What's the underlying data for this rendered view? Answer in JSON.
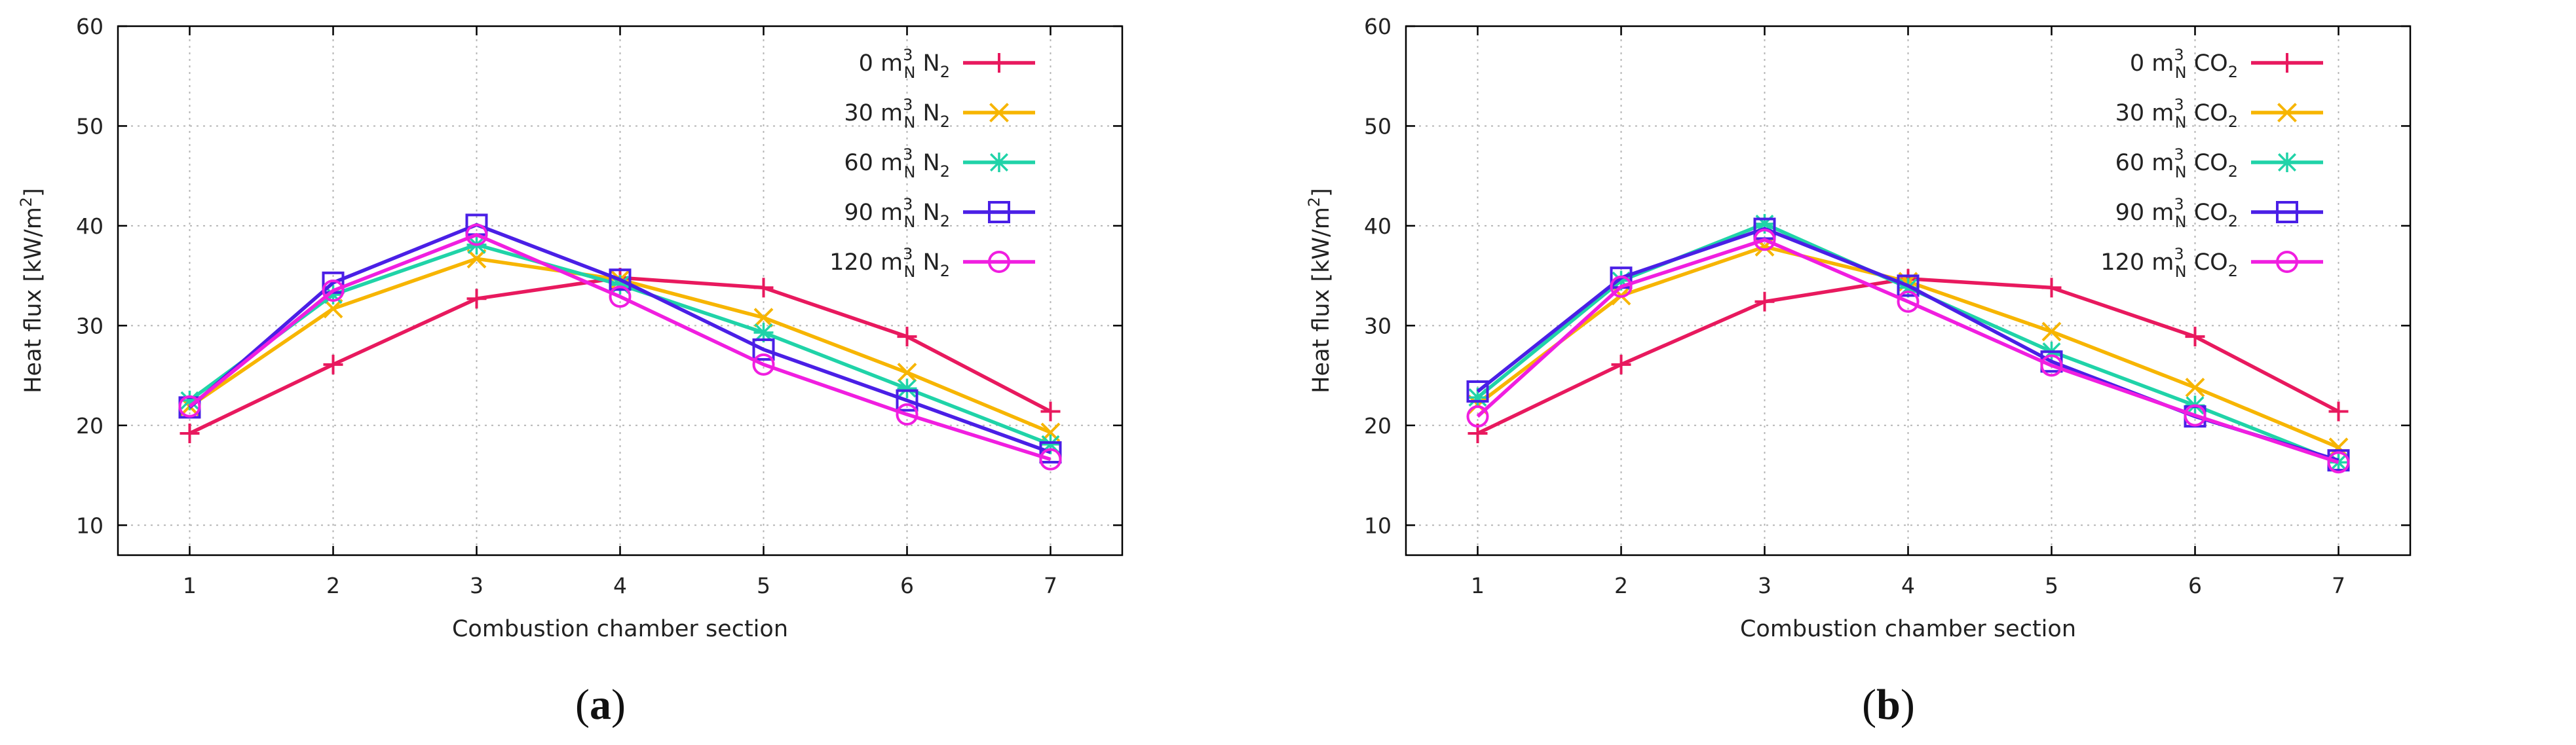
{
  "chart_data": [
    {
      "type": "line",
      "panel_label": "a",
      "xlabel": "Combustion chamber section",
      "ylabel": "Heat flux [kW/m²]",
      "x": [
        1,
        2,
        3,
        4,
        5,
        6,
        7
      ],
      "xticks": [
        "1",
        "2",
        "3",
        "4",
        "5",
        "6",
        "7"
      ],
      "yticks": [
        "10",
        "20",
        "30",
        "40",
        "50",
        "60"
      ],
      "xlim": [
        0.5,
        7.5
      ],
      "ylim": [
        7,
        60
      ],
      "grid": true,
      "legend_position": "top-right",
      "series": [
        {
          "name": "0 m_N^3 N_2",
          "amount": "0",
          "species_base": "N",
          "species_sub": "2",
          "color": "#e8195e",
          "marker": "plus",
          "values": [
            19.2,
            26.1,
            32.7,
            34.8,
            33.8,
            28.9,
            21.4
          ]
        },
        {
          "name": "30 m_N^3 N_2",
          "amount": "30",
          "species_base": "N",
          "species_sub": "2",
          "color": "#f7b500",
          "marker": "x",
          "values": [
            21.9,
            31.7,
            36.7,
            34.6,
            30.8,
            25.3,
            19.3
          ]
        },
        {
          "name": "60 m_N^3 N_2",
          "amount": "60",
          "species_base": "N",
          "species_sub": "2",
          "color": "#20d3a8",
          "marker": "asterisk",
          "values": [
            22.5,
            33.1,
            38.1,
            34.1,
            29.3,
            23.7,
            18.1
          ]
        },
        {
          "name": "90 m_N^3 N_2",
          "amount": "90",
          "species_base": "N",
          "species_sub": "2",
          "color": "#4a1fe6",
          "marker": "square",
          "values": [
            21.8,
            34.3,
            40.1,
            34.6,
            27.6,
            22.5,
            17.3
          ]
        },
        {
          "name": "120 m_N^3 N_2",
          "amount": "120",
          "species_base": "N",
          "species_sub": "2",
          "color": "#f01ee0",
          "marker": "circle",
          "values": [
            21.9,
            33.5,
            39.1,
            32.9,
            26.1,
            21.1,
            16.6
          ]
        }
      ]
    },
    {
      "type": "line",
      "panel_label": "b",
      "xlabel": "Combustion chamber section",
      "ylabel": "Heat flux [kW/m²]",
      "x": [
        1,
        2,
        3,
        4,
        5,
        6,
        7
      ],
      "xticks": [
        "1",
        "2",
        "3",
        "4",
        "5",
        "6",
        "7"
      ],
      "yticks": [
        "10",
        "20",
        "30",
        "40",
        "50",
        "60"
      ],
      "xlim": [
        0.5,
        7.5
      ],
      "ylim": [
        7,
        60
      ],
      "grid": true,
      "legend_position": "top-right",
      "series": [
        {
          "name": "0 m_N^3 CO_2",
          "amount": "0",
          "species_base": "CO",
          "species_sub": "2",
          "color": "#e8195e",
          "marker": "plus",
          "values": [
            19.2,
            26.1,
            32.4,
            34.7,
            33.8,
            28.9,
            21.4
          ]
        },
        {
          "name": "30 m_N^3 CO_2",
          "amount": "30",
          "species_base": "CO",
          "species_sub": "2",
          "color": "#f7b500",
          "marker": "x",
          "values": [
            22.1,
            33.0,
            37.9,
            34.4,
            29.4,
            23.8,
            17.8
          ]
        },
        {
          "name": "60 m_N^3 CO_2",
          "amount": "60",
          "species_base": "CO",
          "species_sub": "2",
          "color": "#20d3a8",
          "marker": "asterisk",
          "values": [
            22.8,
            34.5,
            40.2,
            33.8,
            27.4,
            22.0,
            16.3
          ]
        },
        {
          "name": "90 m_N^3 CO_2",
          "amount": "90",
          "species_base": "CO",
          "species_sub": "2",
          "color": "#4a1fe6",
          "marker": "square",
          "values": [
            23.4,
            34.8,
            39.7,
            34.0,
            26.4,
            20.9,
            16.5
          ]
        },
        {
          "name": "120 m_N^3 CO_2",
          "amount": "120",
          "species_base": "CO",
          "species_sub": "2",
          "color": "#f01ee0",
          "marker": "circle",
          "values": [
            20.9,
            33.9,
            38.6,
            32.4,
            26.0,
            21.0,
            16.3
          ]
        }
      ]
    }
  ],
  "unit_label": {
    "base": "m",
    "sub": "N",
    "sup": "3"
  },
  "ylabel_parts": {
    "pre": "Heat flux [kW/m",
    "sup": "2",
    "post": "]"
  }
}
